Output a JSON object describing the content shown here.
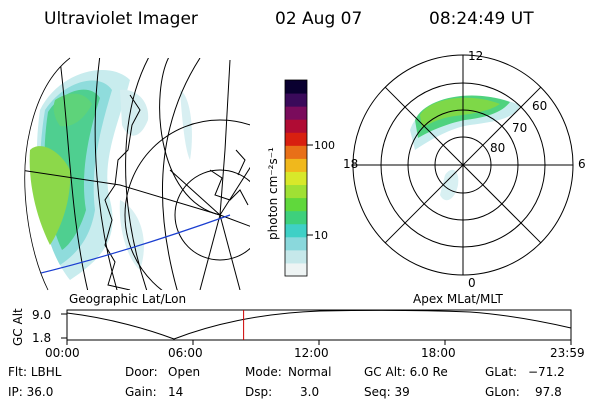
{
  "header": {
    "instrument": "Ultraviolet Imager",
    "date": "02 Aug 07",
    "time": "08:24:49 UT"
  },
  "geo_panel": {
    "caption": "Geographic Lat/Lon"
  },
  "colorbar": {
    "unit_label": "photon cm⁻²s⁻¹",
    "tick_labels": [
      "100",
      "10"
    ],
    "scale": "log",
    "colors": [
      "#eef4f4",
      "#c6e8ea",
      "#8ad8dc",
      "#3fd0c6",
      "#3ed07c",
      "#60d83c",
      "#a0e034",
      "#d8e82a",
      "#f0b81c",
      "#e87018",
      "#d82010",
      "#b00c34",
      "#7a0c5c",
      "#3a0a5a",
      "#0a0030"
    ]
  },
  "polar_panel": {
    "caption": "Apex MLat/MLT",
    "mlt_labels": {
      "top": "12",
      "bottom": "0",
      "left": "18",
      "right": "6"
    },
    "mlat_labels": [
      "60",
      "70",
      "80"
    ]
  },
  "timeline": {
    "y_label": "GC Alt",
    "y_ticks": [
      "9.0",
      "1.8"
    ],
    "x_ticks": [
      "00:00",
      "06:00",
      "12:00",
      "18:00",
      "23:59"
    ],
    "current_marker_hours": 8.41,
    "marker_color": "#cc0000"
  },
  "info": {
    "filter_label": "Flt:",
    "filter_value": "LBHL",
    "ip_label": "IP:",
    "ip_value": "36.0",
    "door_label": "Door:",
    "door_value": "Open",
    "gain_label": "Gain:",
    "gain_value": "14",
    "mode_label": "Mode:",
    "mode_value": "Normal",
    "dsp_label": "Dsp:",
    "dsp_value": "3.0",
    "gcalt_label": "GC Alt:",
    "gcalt_value": "6.0 Re",
    "seq_label": "Seq:",
    "seq_value": "39",
    "glat_label": "GLat:",
    "glat_value": "−71.2",
    "glon_label": "GLon:",
    "glon_value": "97.8"
  }
}
